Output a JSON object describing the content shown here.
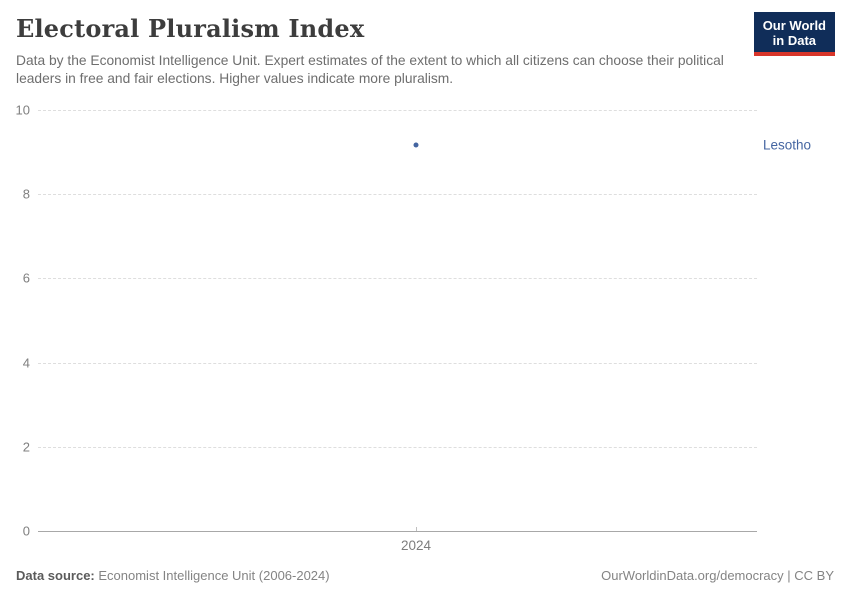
{
  "header": {
    "title": "Electoral Pluralism Index",
    "subtitle": "Data by the Economist Intelligence Unit. Expert estimates of the extent to which all citizens can choose their political leaders in free and fair elections. Higher values indicate more pluralism.",
    "logo": {
      "line1": "Our World",
      "line2": "in Data"
    }
  },
  "chart_data": {
    "type": "scatter",
    "title": "Electoral Pluralism Index",
    "series": [
      {
        "name": "Lesotho",
        "x": [
          2024
        ],
        "values": [
          9.17
        ],
        "color": "#4465a1"
      }
    ],
    "xlabel": "",
    "ylabel": "",
    "xticks": [
      2024
    ],
    "yticks": [
      0,
      2,
      4,
      6,
      8,
      10
    ],
    "ylim": [
      0,
      10
    ],
    "grid": "horizontal-dashed",
    "legend_position": "label-right-of-plot",
    "entity_label": "Lesotho"
  },
  "footer": {
    "source_label": "Data source:",
    "source_text": " Economist Intelligence Unit (2006-2024)",
    "credit": "OurWorldinData.org/democracy | CC BY"
  },
  "colors": {
    "accent_blue": "#4465a1",
    "logo_navy": "#102d59",
    "logo_red": "#d8352a",
    "grid": "#dedede",
    "axis": "#a8a8a8"
  }
}
